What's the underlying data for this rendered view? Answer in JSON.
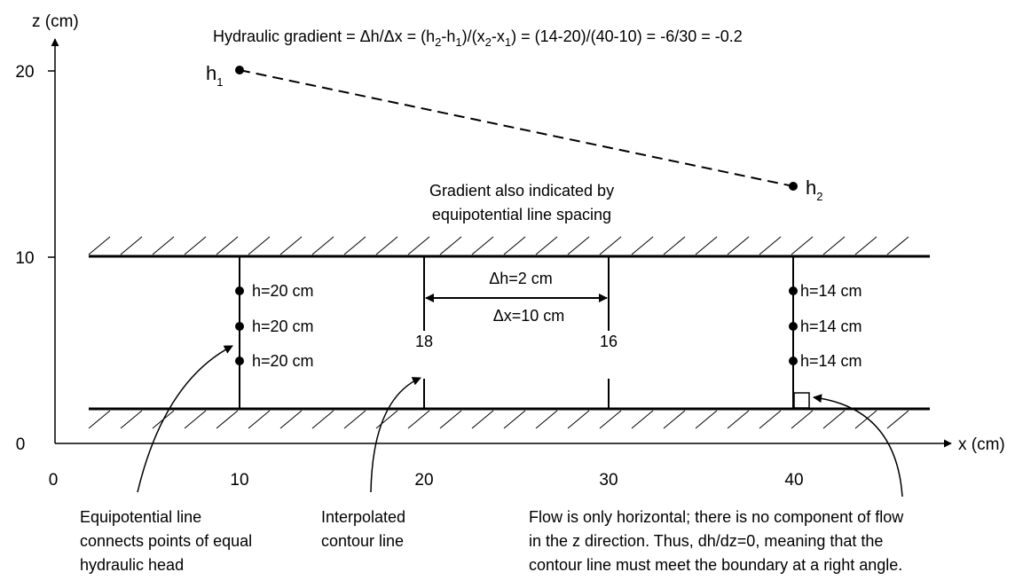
{
  "axes": {
    "z_label": "z (cm)",
    "x_label": "x (cm)",
    "z_ticks": [
      "20",
      "10",
      "0"
    ],
    "x_ticks": [
      "0",
      "10",
      "20",
      "30",
      "40"
    ]
  },
  "gradient_equation": {
    "lead": "Hydraulic gradient = Δh/Δx = (h",
    "s1": "2",
    "m1": "-h",
    "s2": "1",
    "m2": ")/(x",
    "s3": "2",
    "m3": "-x",
    "s4": "1",
    "tail": ") = (14-20)/(40-10) = -6/30 = -0.2"
  },
  "points": {
    "h1_base": "h",
    "h1_sub": "1",
    "h2_base": "h",
    "h2_sub": "2"
  },
  "spacing_note": {
    "line1": "Gradient also indicated by",
    "line2": "equipotential line spacing"
  },
  "left_heads": [
    "h=20 cm",
    "h=20 cm",
    "h=20 cm"
  ],
  "right_heads": [
    "h=14 cm",
    "h=14 cm",
    "h=14 cm"
  ],
  "interval": {
    "dh": "Δh=2 cm",
    "dx": "Δx=10 cm"
  },
  "contours": [
    "18",
    "16"
  ],
  "annotations": {
    "equipotential": [
      "Equipotential line",
      "connects points of equal",
      "hydraulic head"
    ],
    "interpolated": [
      "Interpolated",
      "contour line"
    ],
    "flow": [
      "Flow is only horizontal; there is no component of flow",
      "in the z direction. Thus, dh/dz=0, meaning that the",
      "contour line must meet the boundary at a right angle."
    ]
  }
}
